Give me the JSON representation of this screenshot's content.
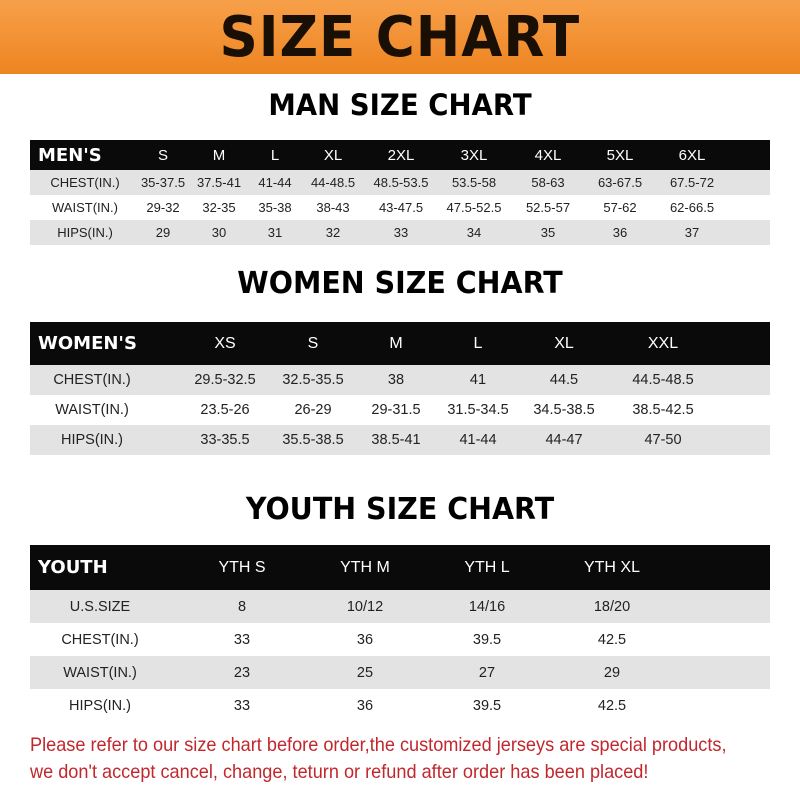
{
  "banner_title": "SIZE CHART",
  "colors": {
    "banner": "#ee8420",
    "header_row": "#0a0a0a",
    "stripe": "#e3e3e3",
    "notice": "#c1272d"
  },
  "men": {
    "title": "MAN SIZE CHART",
    "header": [
      "MEN'S",
      "S",
      "M",
      "L",
      "XL",
      "2XL",
      "3XL",
      "4XL",
      "5XL",
      "6XL"
    ],
    "rows": [
      [
        "CHEST(IN.)",
        "35-37.5",
        "37.5-41",
        "41-44",
        "44-48.5",
        "48.5-53.5",
        "53.5-58",
        "58-63",
        "63-67.5",
        "67.5-72"
      ],
      [
        "WAIST(IN.)",
        "29-32",
        "32-35",
        "35-38",
        "38-43",
        "43-47.5",
        "47.5-52.5",
        "52.5-57",
        "57-62",
        "62-66.5"
      ],
      [
        "HIPS(IN.)",
        "29",
        "30",
        "31",
        "32",
        "33",
        "34",
        "35",
        "36",
        "37"
      ]
    ]
  },
  "women": {
    "title": "WOMEN SIZE CHART",
    "header": [
      "WOMEN'S",
      "XS",
      "S",
      "M",
      "L",
      "XL",
      "XXL"
    ],
    "rows": [
      [
        "CHEST(IN.)",
        "29.5-32.5",
        "32.5-35.5",
        "38",
        "41",
        "44.5",
        "44.5-48.5"
      ],
      [
        "WAIST(IN.)",
        "23.5-26",
        "26-29",
        "29-31.5",
        "31.5-34.5",
        "34.5-38.5",
        "38.5-42.5"
      ],
      [
        "HIPS(IN.)",
        "33-35.5",
        "35.5-38.5",
        "38.5-41",
        "41-44",
        "44-47",
        "47-50"
      ]
    ]
  },
  "youth": {
    "title": "YOUTH SIZE CHART",
    "header": [
      "YOUTH",
      "YTH S",
      "YTH M",
      "YTH L",
      "YTH XL"
    ],
    "rows": [
      [
        "U.S.SIZE",
        "8",
        "10/12",
        "14/16",
        "18/20"
      ],
      [
        "CHEST(IN.)",
        "33",
        "36",
        "39.5",
        "42.5"
      ],
      [
        "WAIST(IN.)",
        "23",
        "25",
        "27",
        "29"
      ],
      [
        "HIPS(IN.)",
        "33",
        "36",
        "39.5",
        "42.5"
      ]
    ]
  },
  "notice": [
    "Please refer to our size chart before order,the customized jerseys are special products,",
    "we don't accept cancel, change, teturn or refund after order has been placed!"
  ]
}
